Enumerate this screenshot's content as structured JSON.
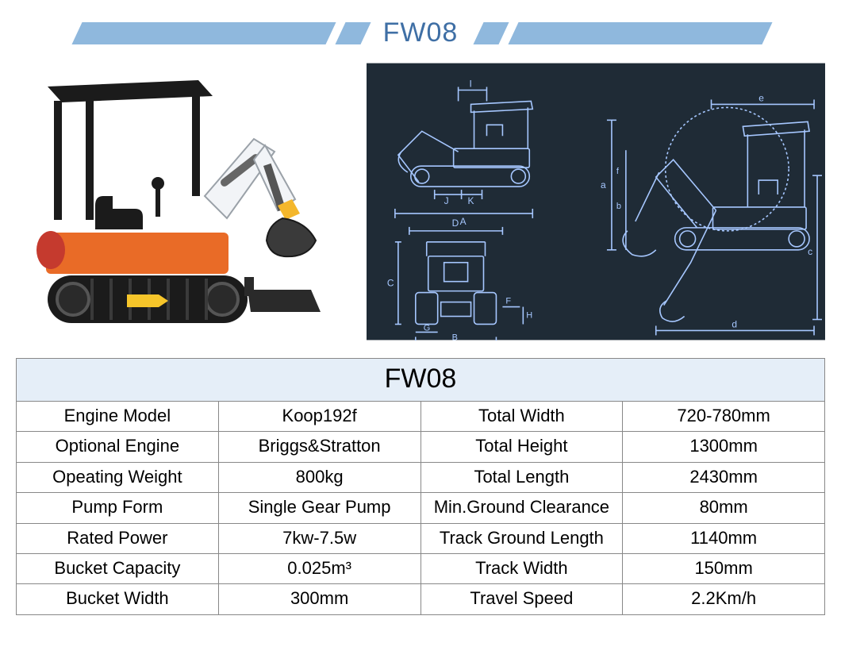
{
  "colors": {
    "banner": "#8fb8dd",
    "title_text": "#3f6fa5",
    "blueprint_bg": "#1f2b36",
    "blueprint_line": "#a6c7ff",
    "table_header_bg": "#e5eef8",
    "table_border": "#888888",
    "excavator_orange": "#e96b27",
    "excavator_dark": "#1b1b1b",
    "excavator_light": "#f2f4f7",
    "excavator_yellow": "#f4b72c",
    "arrow_yellow": "#f6c52a"
  },
  "title": "FW08",
  "table": {
    "caption": "FW08",
    "rows": [
      [
        "Engine Model",
        "Koop192f",
        "Total Width",
        "720-780mm"
      ],
      [
        "Optional Engine",
        "Briggs&Stratton",
        "Total Height",
        "1300mm"
      ],
      [
        "Opeating Weight",
        "800kg",
        "Total Length",
        "2430mm"
      ],
      [
        "Pump Form",
        "Single Gear Pump",
        "Min.Ground Clearance",
        "80mm"
      ],
      [
        "Rated Power",
        "7kw-7.5w",
        "Track Ground Length",
        "1140mm"
      ],
      [
        "Bucket Capacity",
        "0.025m³",
        "Track Width",
        "150mm"
      ],
      [
        "Bucket Width",
        "300mm",
        "Travel Speed",
        "2.2Km/h"
      ]
    ]
  },
  "blueprint": {
    "dimension_labels": [
      "A",
      "B",
      "C",
      "D",
      "E",
      "F",
      "G",
      "H",
      "I",
      "J",
      "K",
      "a",
      "b",
      "c",
      "d",
      "e",
      "f"
    ]
  }
}
